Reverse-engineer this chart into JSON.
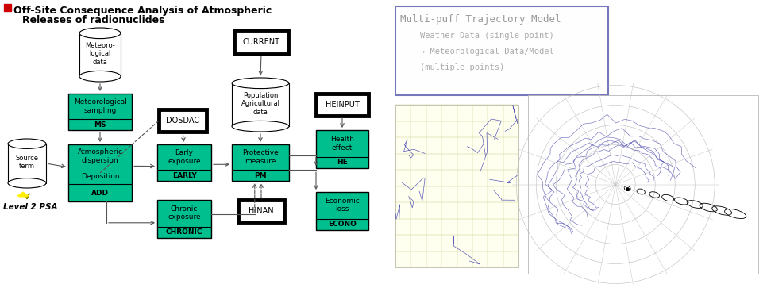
{
  "title_bullet_color": "#CC0000",
  "title_line1": "Off-Site Consequence Analysis of Atmospheric",
  "title_line2": "Releases of radionuclides",
  "bg_color": "#FFFFFF",
  "teal_color": "#00BF8F",
  "box_edge": "#000000",
  "arrow_color": "#555555",
  "info_box_border": "#7777BB",
  "info_title": "Multi-puff Trajectory Model",
  "info_line2": "    Weather Data (single point)",
  "info_line3": "    → Meteorological Data/Model",
  "info_line4": "    (multiple points)",
  "map1_bg": "#FFFFF0",
  "map2_bg": "#FFFFFF",
  "level2_text": "Level 2 PSA"
}
